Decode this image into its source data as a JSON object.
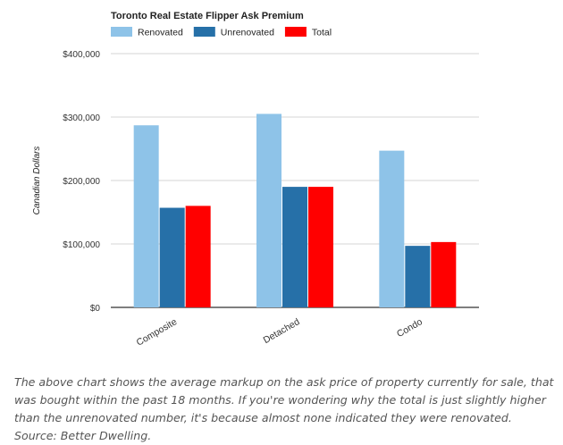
{
  "chart_data": {
    "type": "bar",
    "title": "Toronto Real Estate Flipper Ask Premium",
    "xlabel": "",
    "ylabel": "Canadian Dollars",
    "categories": [
      "Composite",
      "Detached",
      "Condo"
    ],
    "series": [
      {
        "name": "Renovated",
        "color": "#8ec3e8",
        "values": [
          287000,
          305000,
          247000
        ]
      },
      {
        "name": "Unrenovated",
        "color": "#2670a8",
        "values": [
          157000,
          190000,
          97000
        ]
      },
      {
        "name": "Total",
        "color": "#ff0000",
        "values": [
          160000,
          190000,
          103000
        ]
      }
    ],
    "ylim": [
      0,
      400000
    ],
    "yticks": [
      0,
      100000,
      200000,
      300000,
      400000
    ],
    "ytick_labels": [
      "$0",
      "$100,000",
      "$200,000",
      "$300,000",
      "$400,000"
    ],
    "grid": true,
    "legend_position": "top-left"
  },
  "caption": "The above chart shows the average markup on the ask price of property currently for sale, that was bought within the past 18 months. If you're wondering why the total is just slightly higher than the unrenovated number, it's because almost none indicated they were renovated. Source: Better Dwelling."
}
